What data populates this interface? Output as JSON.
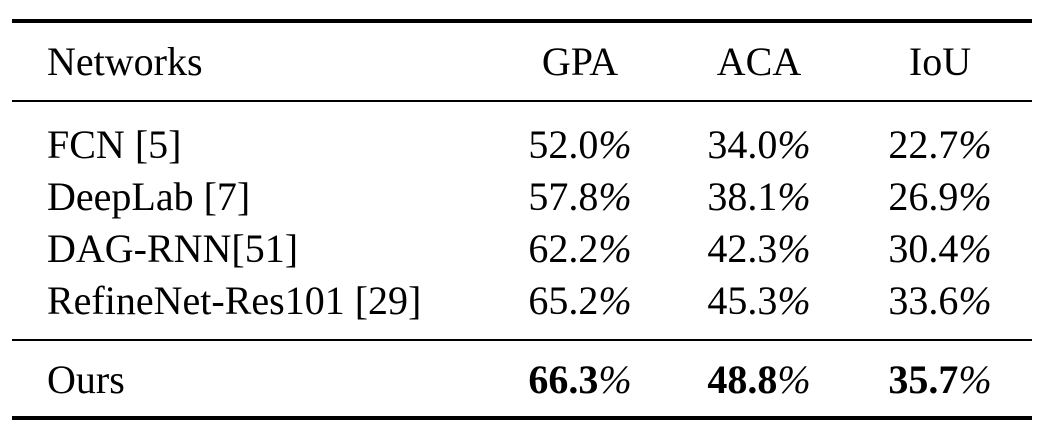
{
  "table": {
    "headers": [
      "Networks",
      "GPA",
      "ACA",
      "IoU"
    ],
    "rows": [
      {
        "network": "FCN [5]",
        "gpa": "52.0",
        "aca": "34.0",
        "iou": "22.7"
      },
      {
        "network": "DeepLab [7]",
        "gpa": "57.8",
        "aca": "38.1",
        "iou": "26.9"
      },
      {
        "network": "DAG-RNN[51]",
        "gpa": "62.2",
        "aca": "42.3",
        "iou": "30.4"
      },
      {
        "network": "RefineNet-Res101 [29]",
        "gpa": "65.2",
        "aca": "45.3",
        "iou": "33.6"
      }
    ],
    "ours": {
      "network": "Ours",
      "gpa": "66.3",
      "aca": "48.8",
      "iou": "35.7"
    },
    "percent_sign": "%"
  }
}
